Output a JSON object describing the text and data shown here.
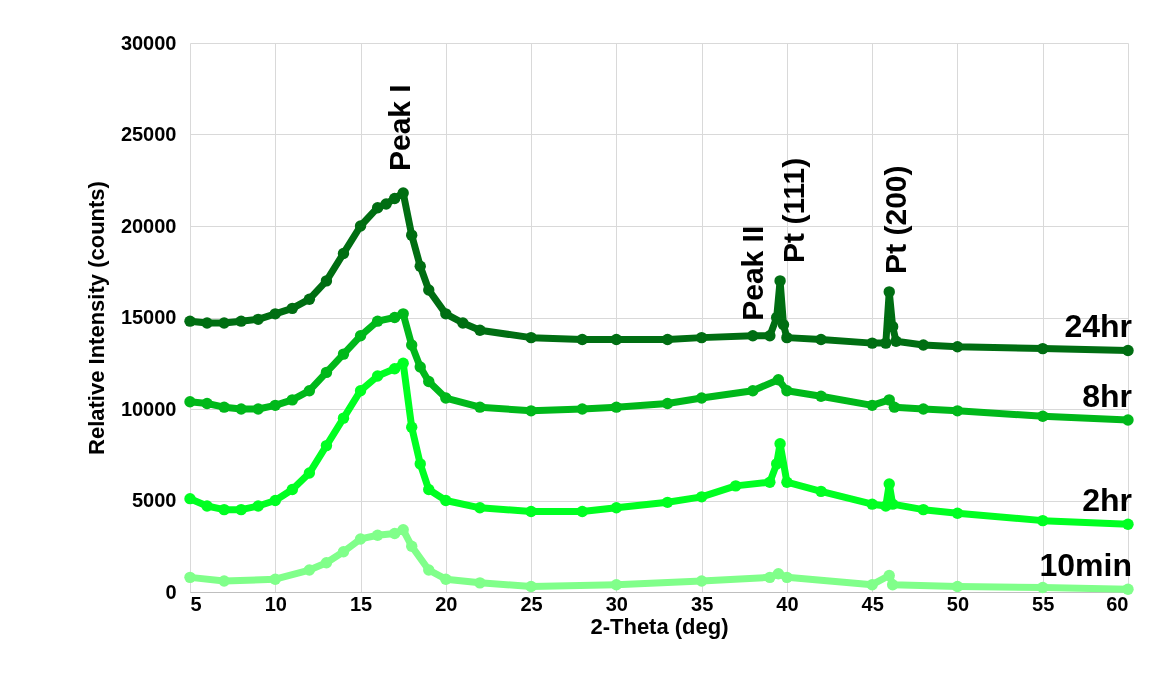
{
  "chart_data": {
    "type": "line",
    "xlabel": "2-Theta (deg)",
    "ylabel": "Relative Intensity (counts)",
    "xlim": [
      5,
      60
    ],
    "xticks": [
      5,
      10,
      15,
      20,
      25,
      30,
      35,
      40,
      45,
      50,
      55,
      60
    ],
    "ylim": [
      0,
      30000
    ],
    "yticks": [
      0,
      5000,
      10000,
      15000,
      20000,
      25000,
      30000
    ],
    "grid": true,
    "legend": false,
    "marker": "circle",
    "line_style": "solid",
    "annotations": [
      {
        "text": "Peak I",
        "x": 17.5,
        "y": 21800
      },
      {
        "text": "Peak II",
        "x": 39,
        "y": 14000
      },
      {
        "text": "Pt (111)",
        "x": 39.6,
        "y": 17000
      },
      {
        "text": "Pt (200)",
        "x": 46,
        "y": 16400
      }
    ],
    "series": [
      {
        "name": "24hr",
        "color": "#006e12",
        "x": [
          5,
          6,
          7,
          8,
          9,
          10,
          11,
          12,
          13,
          14,
          15,
          16,
          16.5,
          17,
          17.5,
          18,
          18.5,
          19,
          20,
          21,
          22,
          25,
          28,
          30,
          33,
          35,
          38,
          39,
          39.4,
          39.6,
          39.8,
          40,
          42,
          45,
          45.8,
          46,
          46.2,
          46.4,
          48,
          50,
          55,
          60
        ],
        "values": [
          14800,
          14700,
          14700,
          14800,
          14900,
          15200,
          15500,
          16000,
          17000,
          18500,
          20000,
          21000,
          21200,
          21500,
          21800,
          19500,
          17800,
          16500,
          15200,
          14700,
          14300,
          13900,
          13800,
          13800,
          13800,
          13900,
          14000,
          14000,
          15000,
          17000,
          14600,
          13900,
          13800,
          13600,
          13600,
          16400,
          14500,
          13700,
          13500,
          13400,
          13300,
          13200
        ]
      },
      {
        "name": "8hr",
        "color": "#00b81a",
        "x": [
          5,
          6,
          7,
          8,
          9,
          10,
          11,
          12,
          13,
          14,
          15,
          16,
          17,
          17.5,
          18,
          18.5,
          19,
          20,
          22,
          25,
          28,
          30,
          33,
          35,
          38,
          39.5,
          40,
          42,
          45,
          46,
          46.3,
          48,
          50,
          55,
          60
        ],
        "values": [
          10400,
          10300,
          10100,
          10000,
          10000,
          10200,
          10500,
          11000,
          12000,
          13000,
          14000,
          14800,
          15000,
          15200,
          13500,
          12300,
          11500,
          10600,
          10100,
          9900,
          10000,
          10100,
          10300,
          10600,
          11000,
          11600,
          11000,
          10700,
          10200,
          10500,
          10100,
          10000,
          9900,
          9600,
          9400
        ]
      },
      {
        "name": "2hr",
        "color": "#00ff22",
        "x": [
          5,
          6,
          7,
          8,
          9,
          10,
          11,
          12,
          13,
          14,
          15,
          16,
          17,
          17.5,
          18,
          18.5,
          19,
          20,
          22,
          25,
          28,
          30,
          33,
          35,
          37,
          39,
          39.4,
          39.6,
          40,
          42,
          45,
          45.8,
          46,
          46.2,
          48,
          50,
          55,
          60
        ],
        "values": [
          5100,
          4700,
          4500,
          4500,
          4700,
          5000,
          5600,
          6500,
          8000,
          9500,
          11000,
          11800,
          12200,
          12500,
          9000,
          7000,
          5600,
          5000,
          4600,
          4400,
          4400,
          4600,
          4900,
          5200,
          5800,
          6000,
          7000,
          8100,
          6000,
          5500,
          4800,
          4700,
          5900,
          4800,
          4500,
          4300,
          3900,
          3700
        ]
      },
      {
        "name": "10min",
        "color": "#80ff8a",
        "x": [
          5,
          7,
          10,
          12,
          13,
          14,
          15,
          16,
          17,
          17.5,
          18,
          19,
          20,
          22,
          25,
          30,
          35,
          39,
          39.5,
          40,
          45,
          46,
          46.2,
          50,
          55,
          60
        ],
        "values": [
          800,
          600,
          700,
          1200,
          1600,
          2200,
          2900,
          3100,
          3200,
          3400,
          2500,
          1200,
          700,
          500,
          300,
          400,
          600,
          800,
          1000,
          800,
          400,
          900,
          400,
          300,
          250,
          150
        ]
      }
    ]
  }
}
